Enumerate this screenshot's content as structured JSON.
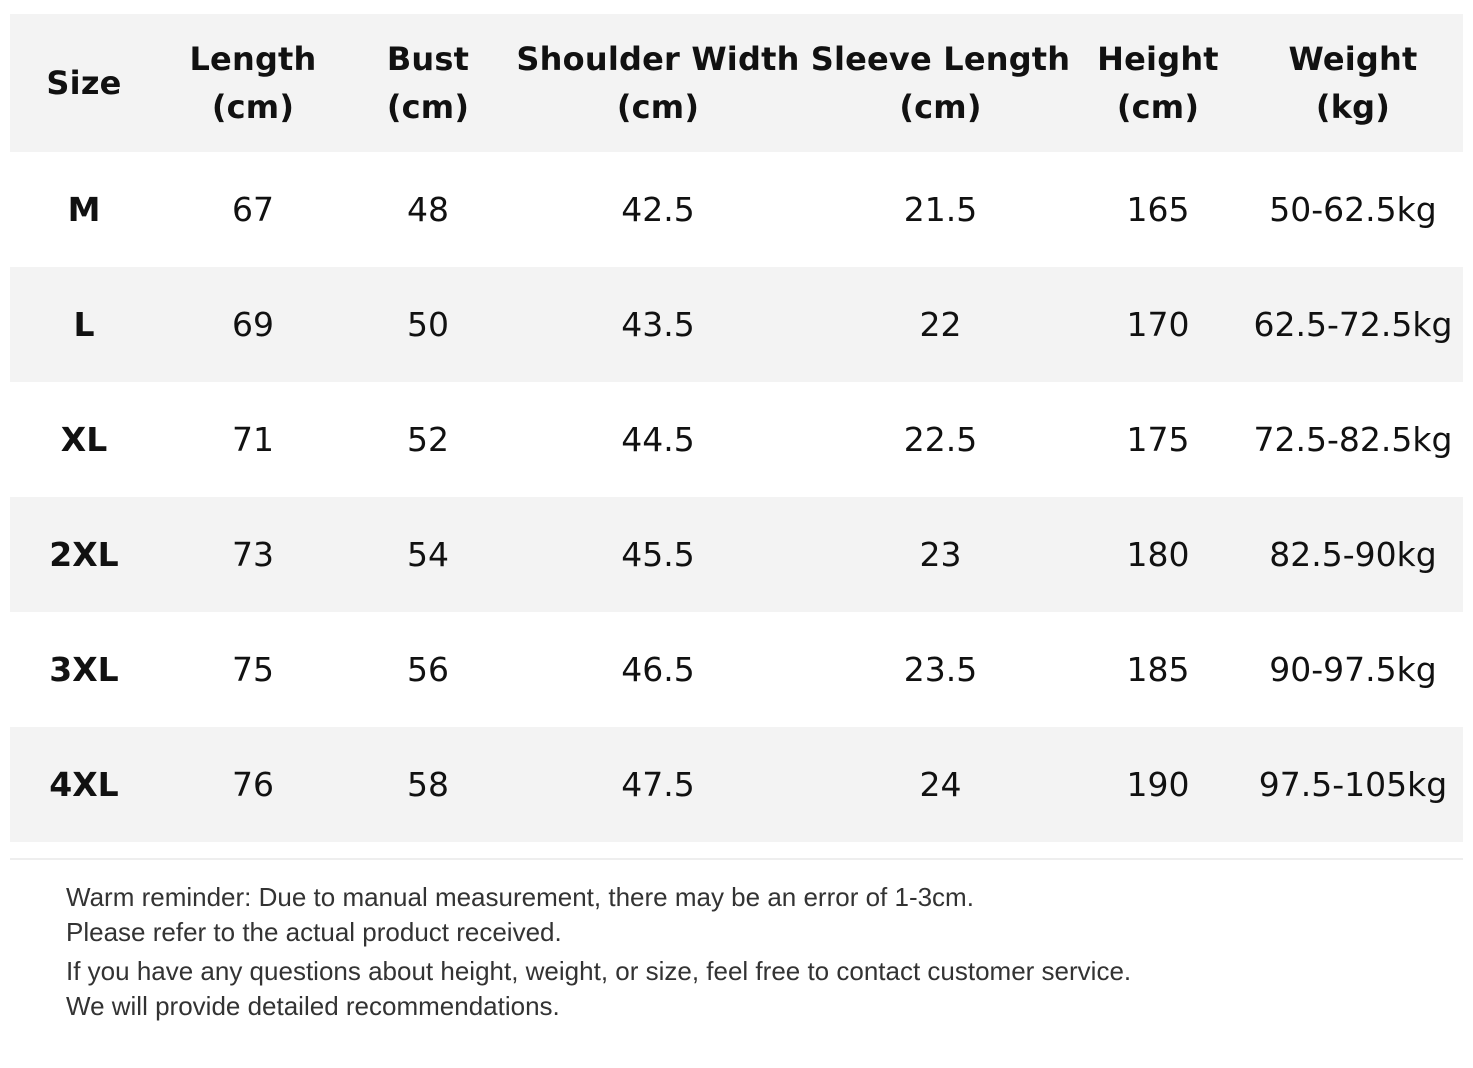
{
  "table": {
    "headers": [
      {
        "name": "Size",
        "unit": ""
      },
      {
        "name": "Length",
        "unit": "(cm)"
      },
      {
        "name": "Bust",
        "unit": "(cm)"
      },
      {
        "name": "Shoulder Width",
        "unit": "(cm)"
      },
      {
        "name": "Sleeve Length",
        "unit": "(cm)"
      },
      {
        "name": "Height",
        "unit": "(cm)"
      },
      {
        "name": "Weight",
        "unit": "(kg)"
      }
    ],
    "rows": [
      [
        "M",
        "67",
        "48",
        "42.5",
        "21.5",
        "165",
        "50-62.5kg"
      ],
      [
        "L",
        "69",
        "50",
        "43.5",
        "22",
        "170",
        "62.5-72.5kg"
      ],
      [
        "XL",
        "71",
        "52",
        "44.5",
        "22.5",
        "175",
        "72.5-82.5kg"
      ],
      [
        "2XL",
        "73",
        "54",
        "45.5",
        "23",
        "180",
        "82.5-90kg"
      ],
      [
        "3XL",
        "75",
        "56",
        "46.5",
        "23.5",
        "185",
        "90-97.5kg"
      ],
      [
        "4XL",
        "76",
        "58",
        "47.5",
        "24",
        "190",
        "97.5-105kg"
      ]
    ]
  },
  "notes": [
    "Warm reminder: Due to manual measurement, there may be an error of 1-3cm.",
    "Please refer to the actual product received.",
    "If you have any questions about height, weight, or size, feel free to contact customer service.",
    "We will provide detailed recommendations."
  ],
  "colors": {
    "band": "#f3f3f3",
    "text": "#111111",
    "note_text": "#333333"
  }
}
